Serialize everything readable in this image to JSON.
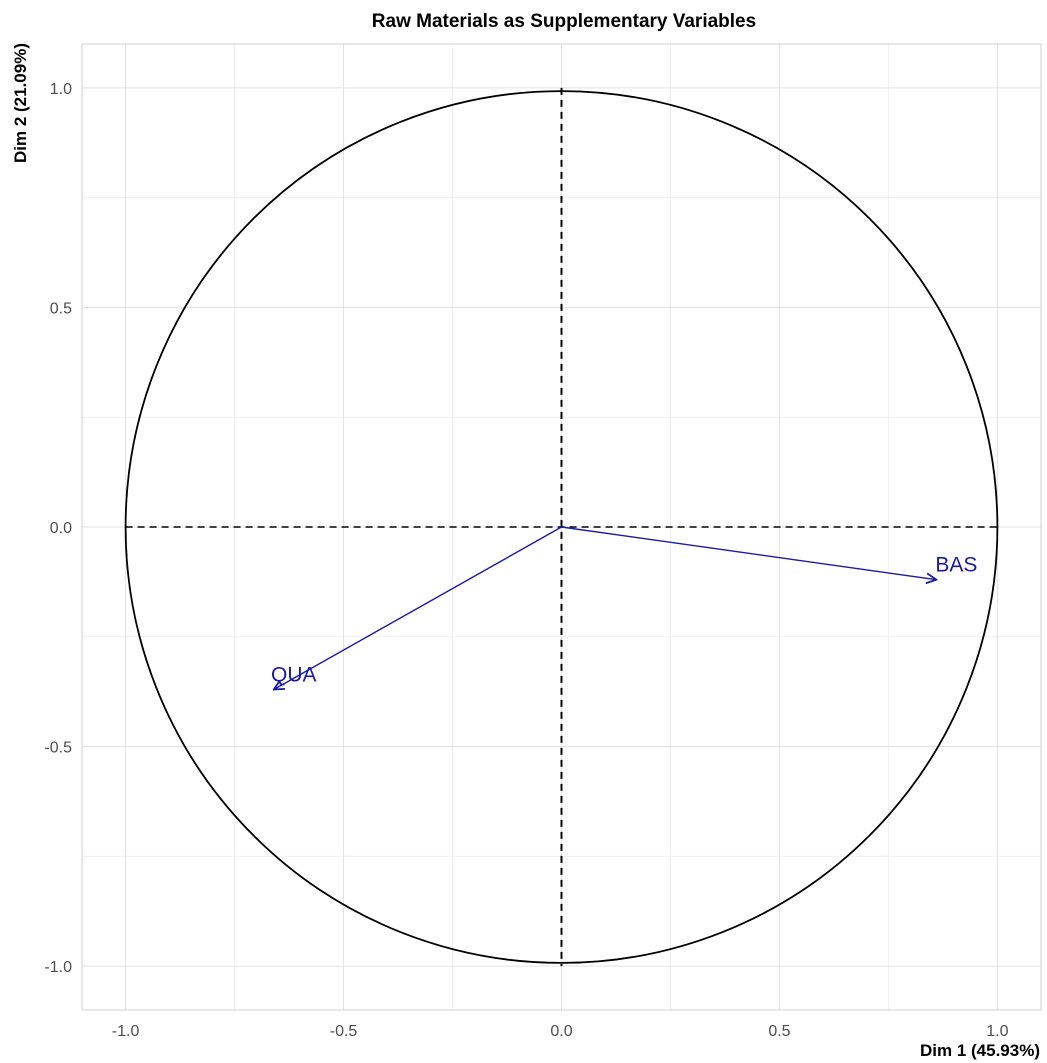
{
  "chart_data": {
    "type": "scatter",
    "subtype": "correlation-circle",
    "title": "Raw Materials as Supplementary Variables",
    "xlabel": "Dim 1 (45.93%)",
    "ylabel": "Dim 2 (21.09%)",
    "xlim": [
      -1.1,
      1.1
    ],
    "ylim": [
      -1.1,
      1.1
    ],
    "x_ticks": [
      -1.0,
      -0.5,
      0.0,
      0.5,
      1.0
    ],
    "y_ticks": [
      -1.0,
      -0.5,
      0.0,
      0.5,
      1.0
    ],
    "x_tick_labels": [
      "-1.0",
      "-0.5",
      "0.0",
      "0.5",
      "1.0"
    ],
    "y_tick_labels": [
      "-1.0",
      "-0.5",
      "0.0",
      "0.5",
      "1.0"
    ],
    "grid": true,
    "unit_circle": true,
    "reference_lines": {
      "x": 0,
      "y": 0,
      "style": "dashed"
    },
    "series": [
      {
        "color": "#1a1aa6",
        "points": [
          {
            "label": "BAS",
            "x": 0.86,
            "y": -0.12
          },
          {
            "label": "QUA",
            "x": -0.66,
            "y": -0.37
          }
        ]
      }
    ]
  }
}
